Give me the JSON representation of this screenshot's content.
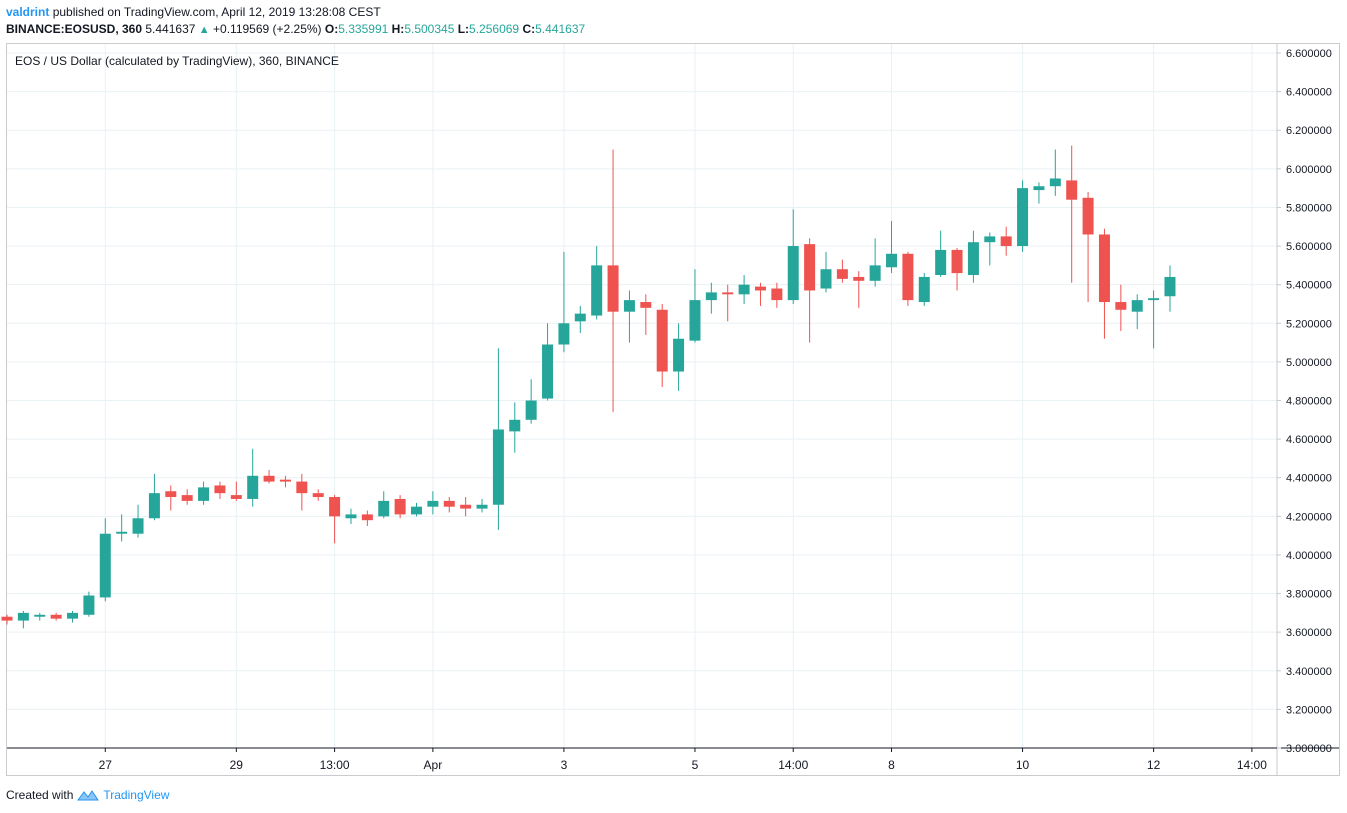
{
  "header": {
    "user": "valdrint",
    "published": "published on TradingView.com, April 12, 2019 13:28:08 CEST",
    "symbol": "BINANCE:EOSUSD, 360",
    "last": "5.441637",
    "change": "+0.119569 (+2.25%)",
    "o_label": "O:",
    "o_value": "5.335991",
    "h_label": "H:",
    "h_value": "5.500345",
    "l_label": "L:",
    "l_value": "5.256069",
    "c_label": "C:",
    "c_value": "5.441637"
  },
  "footer": {
    "created_with": "Created with",
    "brand": "TradingView"
  },
  "colors": {
    "up": "#26a69a",
    "down": "#ef5350",
    "grid": "#e9f1f5",
    "axis_text": "#131722"
  },
  "chart_data": {
    "type": "candlestick",
    "title": "EOS / US Dollar (calculated by TradingView), 360, BINANCE",
    "y_ticks": [
      "3.000000",
      "3.200000",
      "3.400000",
      "3.600000",
      "3.800000",
      "4.000000",
      "4.200000",
      "4.400000",
      "4.600000",
      "4.800000",
      "5.000000",
      "5.200000",
      "5.400000",
      "5.600000",
      "5.800000",
      "6.000000",
      "6.200000",
      "6.400000",
      "6.600000"
    ],
    "ylim": [
      3.0,
      6.6
    ],
    "x_ticks": [
      {
        "label": "27",
        "bar": 6
      },
      {
        "label": "29",
        "bar": 14
      },
      {
        "label": "13:00",
        "bar": 20
      },
      {
        "label": "Apr",
        "bar": 26
      },
      {
        "label": "3",
        "bar": 34
      },
      {
        "label": "5",
        "bar": 42
      },
      {
        "label": "14:00",
        "bar": 48
      },
      {
        "label": "8",
        "bar": 54
      },
      {
        "label": "10",
        "bar": 62
      },
      {
        "label": "12",
        "bar": 70
      },
      {
        "label": "14:00",
        "bar": 76
      }
    ],
    "ohlc": [
      [
        3.68,
        3.69,
        3.64,
        3.66
      ],
      [
        3.66,
        3.71,
        3.62,
        3.7
      ],
      [
        3.68,
        3.7,
        3.66,
        3.69
      ],
      [
        3.69,
        3.7,
        3.66,
        3.67
      ],
      [
        3.67,
        3.71,
        3.65,
        3.7
      ],
      [
        3.69,
        3.81,
        3.68,
        3.79
      ],
      [
        3.78,
        4.19,
        3.76,
        4.11
      ],
      [
        4.11,
        4.21,
        4.07,
        4.12
      ],
      [
        4.11,
        4.26,
        4.09,
        4.19
      ],
      [
        4.19,
        4.42,
        4.18,
        4.32
      ],
      [
        4.33,
        4.36,
        4.23,
        4.3
      ],
      [
        4.31,
        4.34,
        4.26,
        4.28
      ],
      [
        4.28,
        4.38,
        4.26,
        4.35
      ],
      [
        4.36,
        4.38,
        4.29,
        4.32
      ],
      [
        4.31,
        4.38,
        4.28,
        4.29
      ],
      [
        4.29,
        4.55,
        4.25,
        4.41
      ],
      [
        4.41,
        4.44,
        4.37,
        4.38
      ],
      [
        4.39,
        4.41,
        4.35,
        4.38
      ],
      [
        4.38,
        4.42,
        4.23,
        4.32
      ],
      [
        4.32,
        4.34,
        4.28,
        4.3
      ],
      [
        4.3,
        4.31,
        4.06,
        4.2
      ],
      [
        4.19,
        4.24,
        4.16,
        4.21
      ],
      [
        4.21,
        4.23,
        4.15,
        4.18
      ],
      [
        4.2,
        4.33,
        4.19,
        4.28
      ],
      [
        4.29,
        4.31,
        4.19,
        4.21
      ],
      [
        4.21,
        4.27,
        4.2,
        4.25
      ],
      [
        4.25,
        4.33,
        4.21,
        4.28
      ],
      [
        4.28,
        4.3,
        4.22,
        4.25
      ],
      [
        4.26,
        4.3,
        4.2,
        4.24
      ],
      [
        4.24,
        4.29,
        4.22,
        4.26
      ],
      [
        4.26,
        5.07,
        4.13,
        4.65
      ],
      [
        4.64,
        4.79,
        4.53,
        4.7
      ],
      [
        4.7,
        4.91,
        4.68,
        4.8
      ],
      [
        4.81,
        5.2,
        4.8,
        5.09
      ],
      [
        5.09,
        5.57,
        5.05,
        5.2
      ],
      [
        5.21,
        5.29,
        5.15,
        5.25
      ],
      [
        5.24,
        5.6,
        5.22,
        5.5
      ],
      [
        5.5,
        6.1,
        4.74,
        5.26
      ],
      [
        5.26,
        5.37,
        5.1,
        5.32
      ],
      [
        5.31,
        5.35,
        5.14,
        5.28
      ],
      [
        5.27,
        5.3,
        4.87,
        4.95
      ],
      [
        4.95,
        5.2,
        4.85,
        5.12
      ],
      [
        5.11,
        5.48,
        5.1,
        5.32
      ],
      [
        5.32,
        5.41,
        5.25,
        5.36
      ],
      [
        5.36,
        5.4,
        5.21,
        5.35
      ],
      [
        5.35,
        5.45,
        5.3,
        5.4
      ],
      [
        5.39,
        5.41,
        5.29,
        5.37
      ],
      [
        5.38,
        5.41,
        5.28,
        5.32
      ],
      [
        5.32,
        5.79,
        5.3,
        5.6
      ],
      [
        5.61,
        5.64,
        5.1,
        5.37
      ],
      [
        5.38,
        5.57,
        5.36,
        5.48
      ],
      [
        5.48,
        5.53,
        5.41,
        5.43
      ],
      [
        5.44,
        5.47,
        5.28,
        5.42
      ],
      [
        5.42,
        5.64,
        5.39,
        5.5
      ],
      [
        5.49,
        5.73,
        5.46,
        5.56
      ],
      [
        5.56,
        5.57,
        5.29,
        5.32
      ],
      [
        5.31,
        5.46,
        5.29,
        5.44
      ],
      [
        5.45,
        5.68,
        5.44,
        5.58
      ],
      [
        5.58,
        5.59,
        5.37,
        5.46
      ],
      [
        5.45,
        5.68,
        5.41,
        5.62
      ],
      [
        5.62,
        5.67,
        5.5,
        5.65
      ],
      [
        5.65,
        5.7,
        5.55,
        5.6
      ],
      [
        5.6,
        5.94,
        5.57,
        5.9
      ],
      [
        5.89,
        5.93,
        5.82,
        5.91
      ],
      [
        5.91,
        6.1,
        5.86,
        5.95
      ],
      [
        5.94,
        6.12,
        5.41,
        5.84
      ],
      [
        5.85,
        5.88,
        5.31,
        5.66
      ],
      [
        5.66,
        5.69,
        5.12,
        5.31
      ],
      [
        5.31,
        5.4,
        5.16,
        5.27
      ],
      [
        5.26,
        5.35,
        5.17,
        5.32
      ],
      [
        5.32,
        5.37,
        5.07,
        5.33
      ],
      [
        5.34,
        5.5,
        5.26,
        5.44
      ]
    ]
  }
}
